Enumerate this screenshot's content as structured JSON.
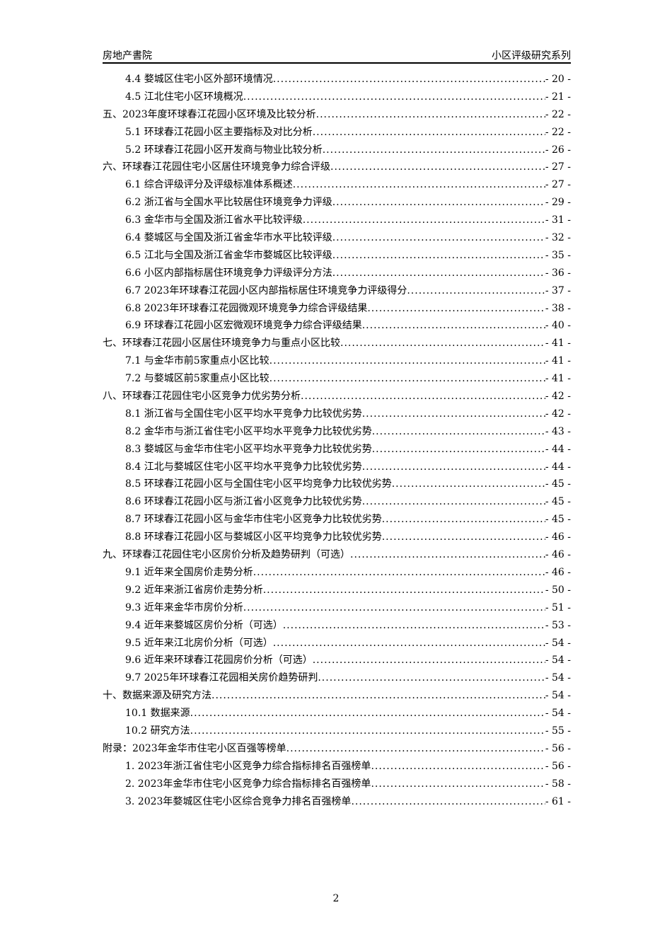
{
  "header": {
    "left": "房地产書院",
    "right": "小区评级研究系列"
  },
  "toc": [
    {
      "level": 2,
      "title": "4.4 婺城区住宅小区外部环境情况",
      "page": "- 20 -"
    },
    {
      "level": 2,
      "title": "4.5 江北住宅小区环境概况",
      "page": "- 21 -"
    },
    {
      "level": 1,
      "title": "五、2023年度环球春江花园小区环境及比较分析",
      "page": "- 22 -"
    },
    {
      "level": 2,
      "title": "5.1 环球春江花园小区主要指标及对比分析",
      "page": "- 22 -"
    },
    {
      "level": 2,
      "title": "5.2 环球春江花园小区开发商与物业比较分析",
      "page": "- 26 -"
    },
    {
      "level": 1,
      "title": "六、环球春江花园住宅小区居住环境竞争力综合评级",
      "page": "- 27 -"
    },
    {
      "level": 2,
      "title": "6.1 综合评级评分及评级标准体系概述",
      "page": "- 27 -"
    },
    {
      "level": 2,
      "title": "6.2 浙江省与全国水平比较居住环境竞争力评级",
      "page": "- 29 -"
    },
    {
      "level": 2,
      "title": "6.3 金华市与全国及浙江省水平比较评级",
      "page": "- 31 -"
    },
    {
      "level": 2,
      "title": "6.4 婺城区与全国及浙江省金华市水平比较评级",
      "page": "- 32 -"
    },
    {
      "level": 2,
      "title": "6.5 江北与全国及浙江省金华市婺城区比较评级",
      "page": "- 35 -"
    },
    {
      "level": 2,
      "title": "6.6 小区内部指标居住环境竞争力评级评分方法",
      "page": "- 36 -"
    },
    {
      "level": 2,
      "title": "6.7 2023年环球春江花园小区内部指标居住环境竞争力评级得分",
      "page": "- 37 -"
    },
    {
      "level": 2,
      "title": "6.8 2023年环球春江花园微观环境竞争力综合评级结果",
      "page": "- 38 -"
    },
    {
      "level": 2,
      "title": "6.9 环球春江花园小区宏微观环境竞争力综合评级结果",
      "page": "- 40 -"
    },
    {
      "level": 1,
      "title": "七、环球春江花园小区居住环境竞争力与重点小区比较",
      "page": "- 41 -"
    },
    {
      "level": 2,
      "title": "7.1 与金华市前5家重点小区比较",
      "page": "- 41 -"
    },
    {
      "level": 2,
      "title": "7.2 与婺城区前5家重点小区比较",
      "page": "- 41 -"
    },
    {
      "level": 1,
      "title": "八、环球春江花园住宅小区竞争力优劣势分析",
      "page": "- 42 -"
    },
    {
      "level": 2,
      "title": "8.1 浙江省与全国住宅小区平均水平竞争力比较优劣势",
      "page": "- 42 -"
    },
    {
      "level": 2,
      "title": "8.2 金华市与浙江省住宅小区平均水平竞争力比较优劣势",
      "page": "- 43 -"
    },
    {
      "level": 2,
      "title": "8.3 婺城区与金华市住宅小区平均水平竞争力比较优劣势",
      "page": "- 44 -"
    },
    {
      "level": 2,
      "title": "8.4 江北与婺城区住宅小区平均水平竞争力比较优劣势",
      "page": "- 44 -"
    },
    {
      "level": 2,
      "title": "8.5 环球春江花园小区与全国住宅小区平均竞争力比较优劣势",
      "page": "- 45 -"
    },
    {
      "level": 2,
      "title": "8.6 环球春江花园小区与浙江省小区竞争力比较优劣势",
      "page": "- 45 -"
    },
    {
      "level": 2,
      "title": "8.7 环球春江花园小区与金华市住宅小区竞争力比较优劣势",
      "page": "- 45 -"
    },
    {
      "level": 2,
      "title": "8.8 环球春江花园小区与婺城区小区平均竞争力比较优劣势",
      "page": "- 46 -"
    },
    {
      "level": 1,
      "title": "九、环球春江花园住宅小区房价分析及趋势研判（可选）",
      "page": "- 46 -"
    },
    {
      "level": 2,
      "title": "9.1 近年来全国房价走势分析",
      "page": "- 46 -"
    },
    {
      "level": 2,
      "title": "9.2 近年来浙江省房价走势分析",
      "page": "- 50 -"
    },
    {
      "level": 2,
      "title": "9.3 近年来金华市房价分析",
      "page": "- 51 -"
    },
    {
      "level": 2,
      "title": "9.4 近年来婺城区房价分析（可选）",
      "page": "- 53 -"
    },
    {
      "level": 2,
      "title": "9.5 近年来江北房价分析（可选）",
      "page": "- 54 -"
    },
    {
      "level": 2,
      "title": "9.6 近年来环球春江花园房价分析（可选）",
      "page": "- 54 -"
    },
    {
      "level": 2,
      "title": "9.7 2025年环球春江花园相关房价趋势研判",
      "page": "- 54 -"
    },
    {
      "level": 1,
      "title": "十、数据来源及研究方法",
      "page": "- 54 -"
    },
    {
      "level": 2,
      "title": "10.1 数据来源",
      "page": "- 54 -"
    },
    {
      "level": 2,
      "title": "10.2 研究方法",
      "page": "- 55 -"
    },
    {
      "level": 1,
      "title": "附录：2023年金华市住宅小区百强等榜单",
      "page": "- 56 -"
    },
    {
      "level": 2,
      "title": "1. 2023年浙江省住宅小区竞争力综合指标排名百强榜单",
      "page": "- 56 -"
    },
    {
      "level": 2,
      "title": "2. 2023年金华市住宅小区竞争力综合指标排名百强榜单",
      "page": "- 58 -"
    },
    {
      "level": 2,
      "title": "3. 2023年婺城区住宅小区综合竞争力排名百强榜单",
      "page": "- 61 -"
    }
  ],
  "footer": {
    "page_number": "2"
  }
}
